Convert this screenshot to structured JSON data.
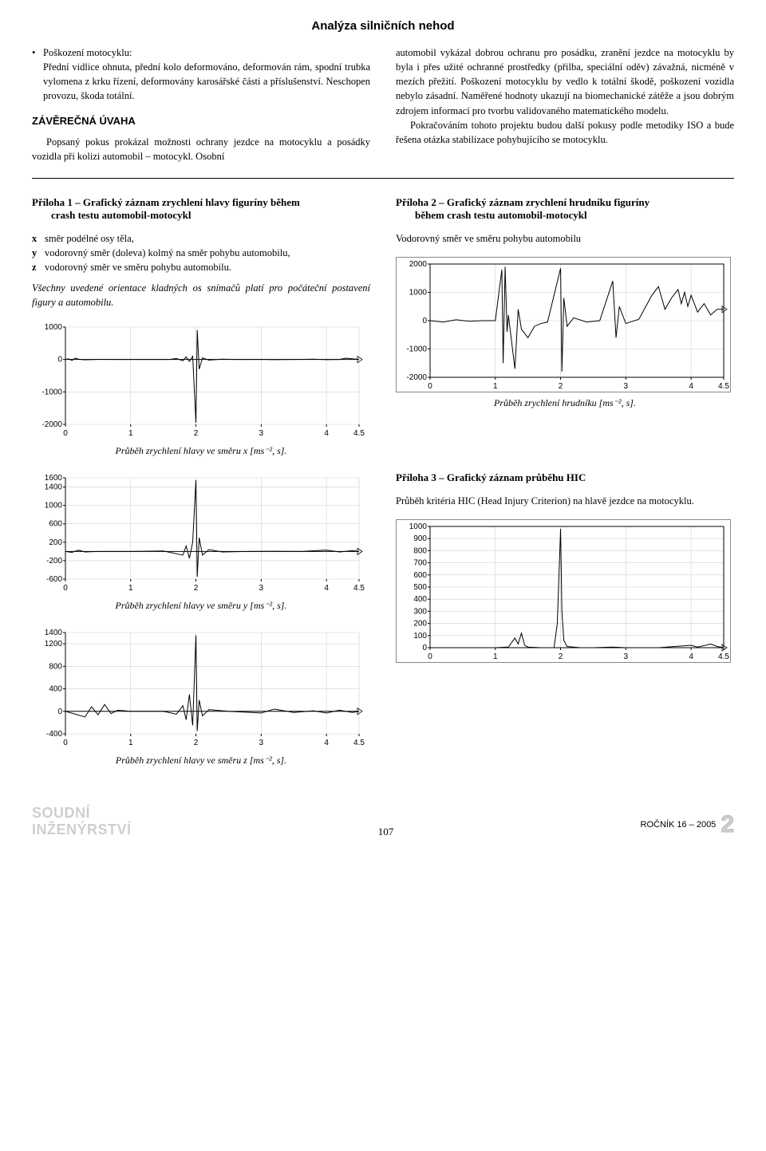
{
  "header": {
    "title": "Analýza silničních nehod"
  },
  "left_col": {
    "bullet_label": "Poškození motocyklu:",
    "bullet_text": "Přední vidlice ohnuta, přední kolo deformováno, deformován rám, spodní trubka vylomena z krku řízení, deformovány karosářské části a příslušenství. Neschopen provozu, škoda totální.",
    "section_heading": "ZÁVĚREČNÁ ÚVAHA",
    "para": "Popsaný pokus prokázal možnosti ochrany jezdce na motocyklu a posádky vozidla při kolizi automobil – motocykl. Osobní"
  },
  "right_col": {
    "para1": "automobil vykázal dobrou ochranu pro posádku, zranění jezdce na motocyklu by byla i přes užité ochranné prostředky (přilba, speciální oděv) závažná, nicméně v mezích přežití. Poškození motocyklu by vedlo k totální škodě, poškození vozidla nebylo zásadní. Naměřené hodnoty ukazují na biomechanické zátěže a jsou dobrým zdrojem informací pro tvorbu validovaného matematického modelu.",
    "para2": "Pokračováním tohoto projektu budou další pokusy podle metodiky ISO a bude řešena otázka stabilizace pohybujícího se motocyklu."
  },
  "app1": {
    "title_line1": "Příloha 1 – Grafický záznam zrychlení hlavy figuríny během",
    "title_line2": "crash testu automobil-motocykl",
    "axes": {
      "x": "směr podélné osy těla,",
      "y": "vodorovný směr (doleva) kolmý na směr pohybu automobilu,",
      "z": "vodorovný směr ve směru pohybu automobilu."
    },
    "note": "Všechny uvedené orientace kladných os snímačů platí pro počáteční postavení figury a automobilu.",
    "chart1_caption": "Průběh zrychlení hlavy ve směru x [ms⁻², s].",
    "chart2_caption": "Průběh zrychlení hlavy ve směru y [ms⁻², s].",
    "chart3_caption": "Průběh zrychlení hlavy ve směru z [ms⁻², s]."
  },
  "app2": {
    "title_line1": "Příloha 2 – Grafický záznam zrychlení hrudníku figuríny",
    "title_line2": "během crash testu automobil-motocykl",
    "subtitle": "Vodorovný směr ve směru pohybu automobilu",
    "chart_caption": "Průběh zrychlení hrudníku [ms⁻², s]."
  },
  "app3": {
    "title": "Příloha 3 – Grafický záznam průběhu HIC",
    "para": "Průběh kritéria HIC (Head Injury Criterion) na hlavě jezdce na motocyklu."
  },
  "charts": {
    "axis_color": "#000000",
    "grid_color": "#d0cfcf",
    "line_color": "#000000",
    "bg": "#ffffff",
    "tick_font": 10,
    "head_x": {
      "xlim": [
        0,
        4.5
      ],
      "xticks": [
        0,
        1,
        2,
        3,
        4,
        4.5
      ],
      "ylim": [
        -2000,
        1000
      ],
      "yticks": [
        -2000,
        -1000,
        0,
        1000
      ],
      "series": [
        [
          0,
          0
        ],
        [
          0.05,
          20
        ],
        [
          0.1,
          -30
        ],
        [
          0.15,
          40
        ],
        [
          0.2,
          10
        ],
        [
          0.3,
          -10
        ],
        [
          0.5,
          5
        ],
        [
          0.8,
          0
        ],
        [
          1.6,
          0
        ],
        [
          1.7,
          30
        ],
        [
          1.8,
          -40
        ],
        [
          1.85,
          80
        ],
        [
          1.9,
          -60
        ],
        [
          1.95,
          100
        ],
        [
          2.0,
          -1950
        ],
        [
          2.02,
          900
        ],
        [
          2.05,
          -300
        ],
        [
          2.1,
          50
        ],
        [
          2.2,
          -20
        ],
        [
          2.4,
          10
        ],
        [
          2.6,
          0
        ],
        [
          3.0,
          5
        ],
        [
          3.2,
          -5
        ],
        [
          3.5,
          0
        ],
        [
          3.8,
          10
        ],
        [
          4.0,
          -5
        ],
        [
          4.2,
          0
        ],
        [
          4.3,
          40
        ],
        [
          4.5,
          0
        ]
      ]
    },
    "head_y": {
      "xlim": [
        0,
        4.5
      ],
      "xticks": [
        0,
        1,
        2,
        3,
        4,
        4.5
      ],
      "ylim": [
        -600,
        1600
      ],
      "yticks": [
        -600,
        -200,
        200,
        600,
        1000,
        1400,
        1600
      ],
      "series": [
        [
          0,
          0
        ],
        [
          0.1,
          -20
        ],
        [
          0.2,
          30
        ],
        [
          0.3,
          -10
        ],
        [
          0.5,
          0
        ],
        [
          1.0,
          0
        ],
        [
          1.5,
          10
        ],
        [
          1.8,
          -80
        ],
        [
          1.85,
          120
        ],
        [
          1.9,
          -150
        ],
        [
          1.95,
          200
        ],
        [
          2.0,
          1550
        ],
        [
          2.02,
          -550
        ],
        [
          2.05,
          300
        ],
        [
          2.1,
          -80
        ],
        [
          2.2,
          40
        ],
        [
          2.4,
          -10
        ],
        [
          2.8,
          0
        ],
        [
          3.2,
          5
        ],
        [
          3.6,
          0
        ],
        [
          4.0,
          30
        ],
        [
          4.2,
          -10
        ],
        [
          4.4,
          20
        ],
        [
          4.5,
          0
        ]
      ]
    },
    "head_z": {
      "xlim": [
        0,
        4.5
      ],
      "xticks": [
        0,
        1,
        2,
        3,
        4,
        4.5
      ],
      "ylim": [
        -400,
        1400
      ],
      "yticks": [
        -400,
        0,
        400,
        800,
        1200,
        1400
      ],
      "series": [
        [
          0,
          0
        ],
        [
          0.3,
          -100
        ],
        [
          0.4,
          80
        ],
        [
          0.5,
          -60
        ],
        [
          0.6,
          120
        ],
        [
          0.7,
          -40
        ],
        [
          0.8,
          20
        ],
        [
          1.0,
          0
        ],
        [
          1.5,
          0
        ],
        [
          1.7,
          -50
        ],
        [
          1.8,
          100
        ],
        [
          1.85,
          -150
        ],
        [
          1.9,
          300
        ],
        [
          1.95,
          -250
        ],
        [
          2.0,
          1350
        ],
        [
          2.02,
          -350
        ],
        [
          2.05,
          200
        ],
        [
          2.1,
          -80
        ],
        [
          2.2,
          30
        ],
        [
          2.5,
          0
        ],
        [
          3.0,
          -30
        ],
        [
          3.2,
          40
        ],
        [
          3.5,
          -20
        ],
        [
          3.8,
          10
        ],
        [
          4.0,
          -30
        ],
        [
          4.2,
          20
        ],
        [
          4.4,
          -20
        ],
        [
          4.5,
          0
        ]
      ]
    },
    "chest": {
      "xlim": [
        0,
        4.5
      ],
      "xticks": [
        0,
        1,
        2,
        3,
        4,
        4.5
      ],
      "ylim": [
        -2000,
        2000
      ],
      "yticks": [
        -2000,
        -1000,
        0,
        1000,
        2000
      ],
      "series": [
        [
          0,
          0
        ],
        [
          0.2,
          -50
        ],
        [
          0.4,
          30
        ],
        [
          0.6,
          -20
        ],
        [
          0.8,
          0
        ],
        [
          1.0,
          0
        ],
        [
          1.1,
          1800
        ],
        [
          1.12,
          -1500
        ],
        [
          1.15,
          1900
        ],
        [
          1.18,
          -400
        ],
        [
          1.2,
          200
        ],
        [
          1.3,
          -1700
        ],
        [
          1.35,
          400
        ],
        [
          1.4,
          -300
        ],
        [
          1.5,
          -600
        ],
        [
          1.6,
          -200
        ],
        [
          1.7,
          -100
        ],
        [
          1.8,
          -50
        ],
        [
          2.0,
          1850
        ],
        [
          2.02,
          -1800
        ],
        [
          2.05,
          800
        ],
        [
          2.1,
          -200
        ],
        [
          2.2,
          100
        ],
        [
          2.4,
          -50
        ],
        [
          2.6,
          0
        ],
        [
          2.8,
          1400
        ],
        [
          2.85,
          -600
        ],
        [
          2.9,
          500
        ],
        [
          3.0,
          -100
        ],
        [
          3.2,
          50
        ],
        [
          3.4,
          900
        ],
        [
          3.5,
          1200
        ],
        [
          3.6,
          400
        ],
        [
          3.7,
          800
        ],
        [
          3.8,
          1100
        ],
        [
          3.85,
          600
        ],
        [
          3.9,
          1000
        ],
        [
          3.95,
          500
        ],
        [
          4.0,
          900
        ],
        [
          4.1,
          300
        ],
        [
          4.2,
          600
        ],
        [
          4.3,
          200
        ],
        [
          4.4,
          400
        ],
        [
          4.5,
          400
        ]
      ]
    },
    "hic": {
      "xlim": [
        0,
        4.5
      ],
      "xticks": [
        0,
        1,
        2,
        3,
        4,
        4.5
      ],
      "ylim": [
        0,
        1000
      ],
      "yticks": [
        0,
        100,
        200,
        300,
        400,
        500,
        600,
        700,
        800,
        900,
        1000
      ],
      "series": [
        [
          0,
          0
        ],
        [
          0.5,
          0
        ],
        [
          1.0,
          0
        ],
        [
          1.2,
          5
        ],
        [
          1.3,
          80
        ],
        [
          1.35,
          30
        ],
        [
          1.4,
          120
        ],
        [
          1.45,
          20
        ],
        [
          1.5,
          5
        ],
        [
          1.7,
          0
        ],
        [
          1.9,
          0
        ],
        [
          1.95,
          200
        ],
        [
          2.0,
          980
        ],
        [
          2.02,
          300
        ],
        [
          2.05,
          60
        ],
        [
          2.1,
          10
        ],
        [
          2.3,
          0
        ],
        [
          2.5,
          0
        ],
        [
          2.8,
          5
        ],
        [
          3.0,
          0
        ],
        [
          3.5,
          0
        ],
        [
          4.0,
          20
        ],
        [
          4.1,
          5
        ],
        [
          4.3,
          30
        ],
        [
          4.4,
          10
        ],
        [
          4.5,
          0
        ]
      ]
    }
  },
  "footer": {
    "logo_l1": "SOUDNÍ",
    "logo_l2": "INŽENÝRSTVÍ",
    "page": "107",
    "right": "ROČNÍK 16 – 2005",
    "glyph": "2"
  }
}
